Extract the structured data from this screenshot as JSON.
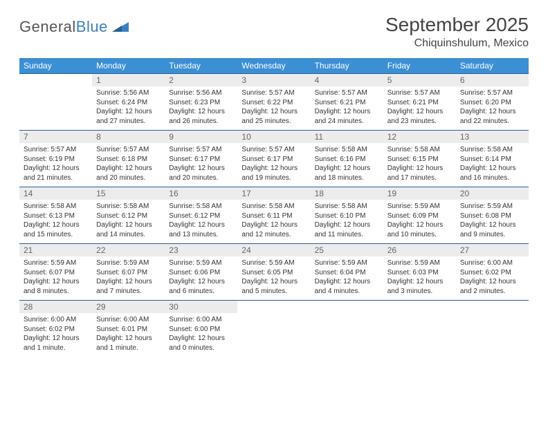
{
  "logo": {
    "text1": "General",
    "text2": "Blue"
  },
  "colors": {
    "header_bg": "#3b8fd4",
    "header_text": "#ffffff",
    "row_border": "#2a5f8f",
    "daynum_bg": "#ececec",
    "daynum_text": "#666666",
    "body_text": "#333333",
    "logo_gray": "#555555",
    "logo_blue": "#3b7fbf"
  },
  "title": "September 2025",
  "location": "Chiquinshulum, Mexico",
  "dow": [
    "Sunday",
    "Monday",
    "Tuesday",
    "Wednesday",
    "Thursday",
    "Friday",
    "Saturday"
  ],
  "weeks": [
    [
      null,
      {
        "n": "1",
        "sr": "5:56 AM",
        "ss": "6:24 PM",
        "dl": "12 hours and 27 minutes."
      },
      {
        "n": "2",
        "sr": "5:56 AM",
        "ss": "6:23 PM",
        "dl": "12 hours and 26 minutes."
      },
      {
        "n": "3",
        "sr": "5:57 AM",
        "ss": "6:22 PM",
        "dl": "12 hours and 25 minutes."
      },
      {
        "n": "4",
        "sr": "5:57 AM",
        "ss": "6:21 PM",
        "dl": "12 hours and 24 minutes."
      },
      {
        "n": "5",
        "sr": "5:57 AM",
        "ss": "6:21 PM",
        "dl": "12 hours and 23 minutes."
      },
      {
        "n": "6",
        "sr": "5:57 AM",
        "ss": "6:20 PM",
        "dl": "12 hours and 22 minutes."
      }
    ],
    [
      {
        "n": "7",
        "sr": "5:57 AM",
        "ss": "6:19 PM",
        "dl": "12 hours and 21 minutes."
      },
      {
        "n": "8",
        "sr": "5:57 AM",
        "ss": "6:18 PM",
        "dl": "12 hours and 20 minutes."
      },
      {
        "n": "9",
        "sr": "5:57 AM",
        "ss": "6:17 PM",
        "dl": "12 hours and 20 minutes."
      },
      {
        "n": "10",
        "sr": "5:57 AM",
        "ss": "6:17 PM",
        "dl": "12 hours and 19 minutes."
      },
      {
        "n": "11",
        "sr": "5:58 AM",
        "ss": "6:16 PM",
        "dl": "12 hours and 18 minutes."
      },
      {
        "n": "12",
        "sr": "5:58 AM",
        "ss": "6:15 PM",
        "dl": "12 hours and 17 minutes."
      },
      {
        "n": "13",
        "sr": "5:58 AM",
        "ss": "6:14 PM",
        "dl": "12 hours and 16 minutes."
      }
    ],
    [
      {
        "n": "14",
        "sr": "5:58 AM",
        "ss": "6:13 PM",
        "dl": "12 hours and 15 minutes."
      },
      {
        "n": "15",
        "sr": "5:58 AM",
        "ss": "6:12 PM",
        "dl": "12 hours and 14 minutes."
      },
      {
        "n": "16",
        "sr": "5:58 AM",
        "ss": "6:12 PM",
        "dl": "12 hours and 13 minutes."
      },
      {
        "n": "17",
        "sr": "5:58 AM",
        "ss": "6:11 PM",
        "dl": "12 hours and 12 minutes."
      },
      {
        "n": "18",
        "sr": "5:58 AM",
        "ss": "6:10 PM",
        "dl": "12 hours and 11 minutes."
      },
      {
        "n": "19",
        "sr": "5:59 AM",
        "ss": "6:09 PM",
        "dl": "12 hours and 10 minutes."
      },
      {
        "n": "20",
        "sr": "5:59 AM",
        "ss": "6:08 PM",
        "dl": "12 hours and 9 minutes."
      }
    ],
    [
      {
        "n": "21",
        "sr": "5:59 AM",
        "ss": "6:07 PM",
        "dl": "12 hours and 8 minutes."
      },
      {
        "n": "22",
        "sr": "5:59 AM",
        "ss": "6:07 PM",
        "dl": "12 hours and 7 minutes."
      },
      {
        "n": "23",
        "sr": "5:59 AM",
        "ss": "6:06 PM",
        "dl": "12 hours and 6 minutes."
      },
      {
        "n": "24",
        "sr": "5:59 AM",
        "ss": "6:05 PM",
        "dl": "12 hours and 5 minutes."
      },
      {
        "n": "25",
        "sr": "5:59 AM",
        "ss": "6:04 PM",
        "dl": "12 hours and 4 minutes."
      },
      {
        "n": "26",
        "sr": "5:59 AM",
        "ss": "6:03 PM",
        "dl": "12 hours and 3 minutes."
      },
      {
        "n": "27",
        "sr": "6:00 AM",
        "ss": "6:02 PM",
        "dl": "12 hours and 2 minutes."
      }
    ],
    [
      {
        "n": "28",
        "sr": "6:00 AM",
        "ss": "6:02 PM",
        "dl": "12 hours and 1 minute."
      },
      {
        "n": "29",
        "sr": "6:00 AM",
        "ss": "6:01 PM",
        "dl": "12 hours and 1 minute."
      },
      {
        "n": "30",
        "sr": "6:00 AM",
        "ss": "6:00 PM",
        "dl": "12 hours and 0 minutes."
      },
      null,
      null,
      null,
      null
    ]
  ],
  "labels": {
    "sunrise": "Sunrise:",
    "sunset": "Sunset:",
    "daylight": "Daylight:"
  }
}
